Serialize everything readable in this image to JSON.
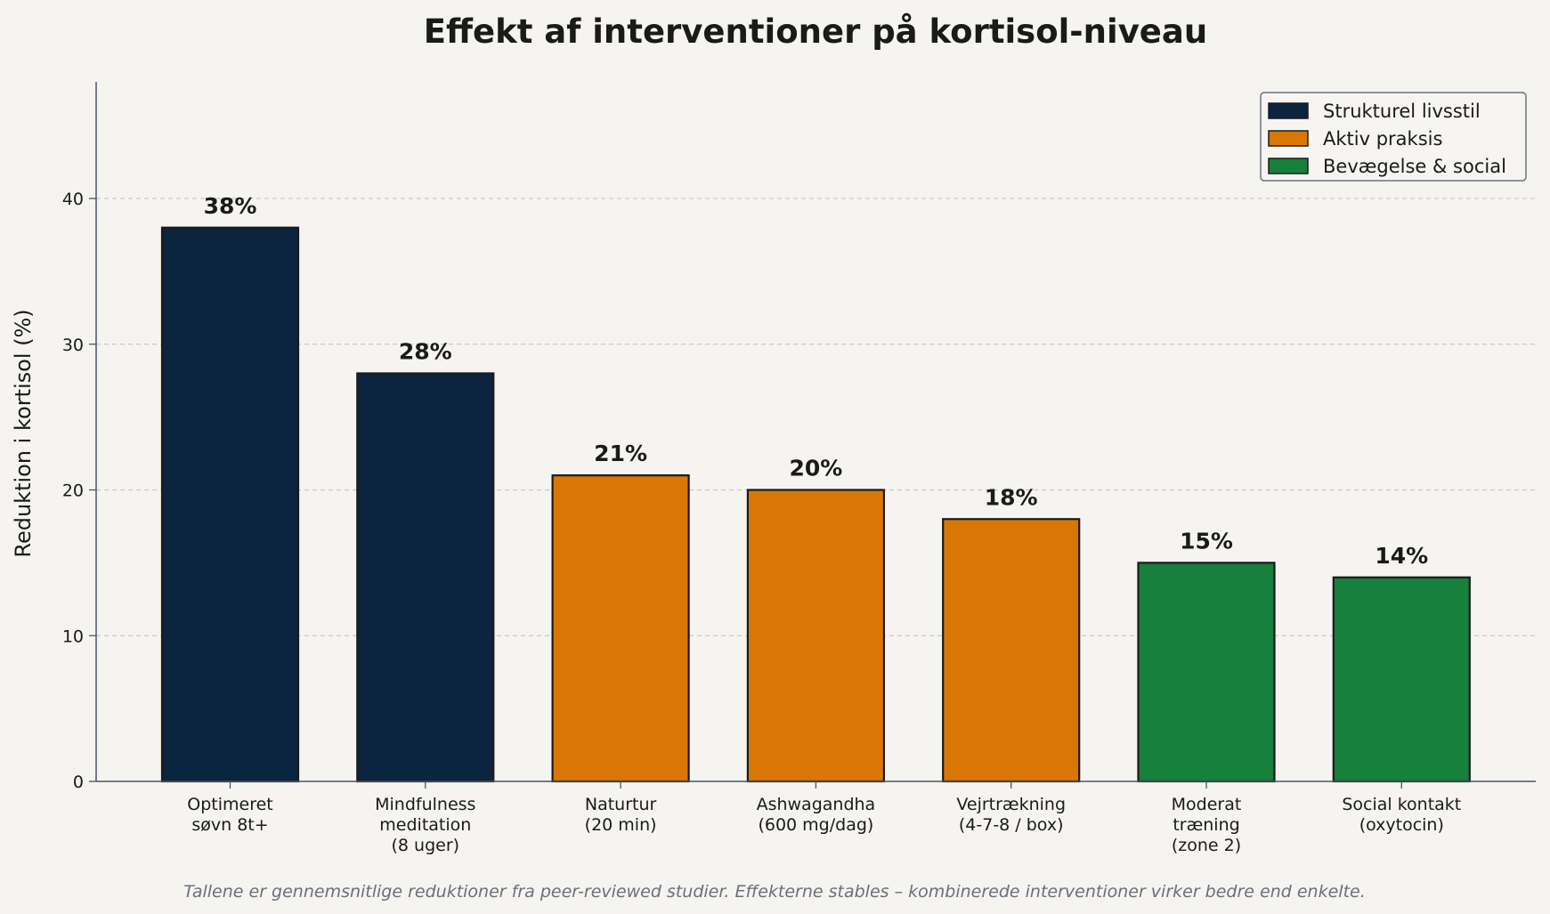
{
  "chart_data": {
    "type": "bar",
    "title": "Effekt af interventioner på kortisol-niveau",
    "ylabel": "Reduktion i kortisol (%)",
    "xlabel": "",
    "ylim": [
      0,
      48
    ],
    "yticks": [
      0,
      10,
      20,
      30,
      40
    ],
    "grid": "horizontal dashed",
    "legend_position": "top-right",
    "categories": [
      [
        "Optimeret",
        "søvn 8t+"
      ],
      [
        "Mindfulness",
        "meditation",
        "(8 uger)"
      ],
      [
        "Naturtur",
        "(20 min)"
      ],
      [
        "Ashwagandha",
        "(600 mg/dag)"
      ],
      [
        "Vejrtrækning",
        "(4-7-8 / box)"
      ],
      [
        "Moderat",
        "træning",
        "(zone 2)"
      ],
      [
        "Social kontakt",
        "(oxytocin)"
      ]
    ],
    "values": [
      38,
      28,
      21,
      20,
      18,
      15,
      14
    ],
    "value_labels": [
      "38%",
      "28%",
      "21%",
      "20%",
      "18%",
      "15%",
      "14%"
    ],
    "bar_groups": [
      0,
      0,
      1,
      1,
      1,
      2,
      2
    ],
    "groups": [
      {
        "name": "Strukturel livsstil",
        "color": "#0b243f"
      },
      {
        "name": "Aktiv praksis",
        "color": "#d97706"
      },
      {
        "name": "Bevægelse & social",
        "color": "#16803c"
      }
    ],
    "footnote": "Tallene er gennemsnitlige reduktioner fra peer-reviewed studier. Effekterne stables – kombinerede interventioner virker bedre end enkelte."
  }
}
